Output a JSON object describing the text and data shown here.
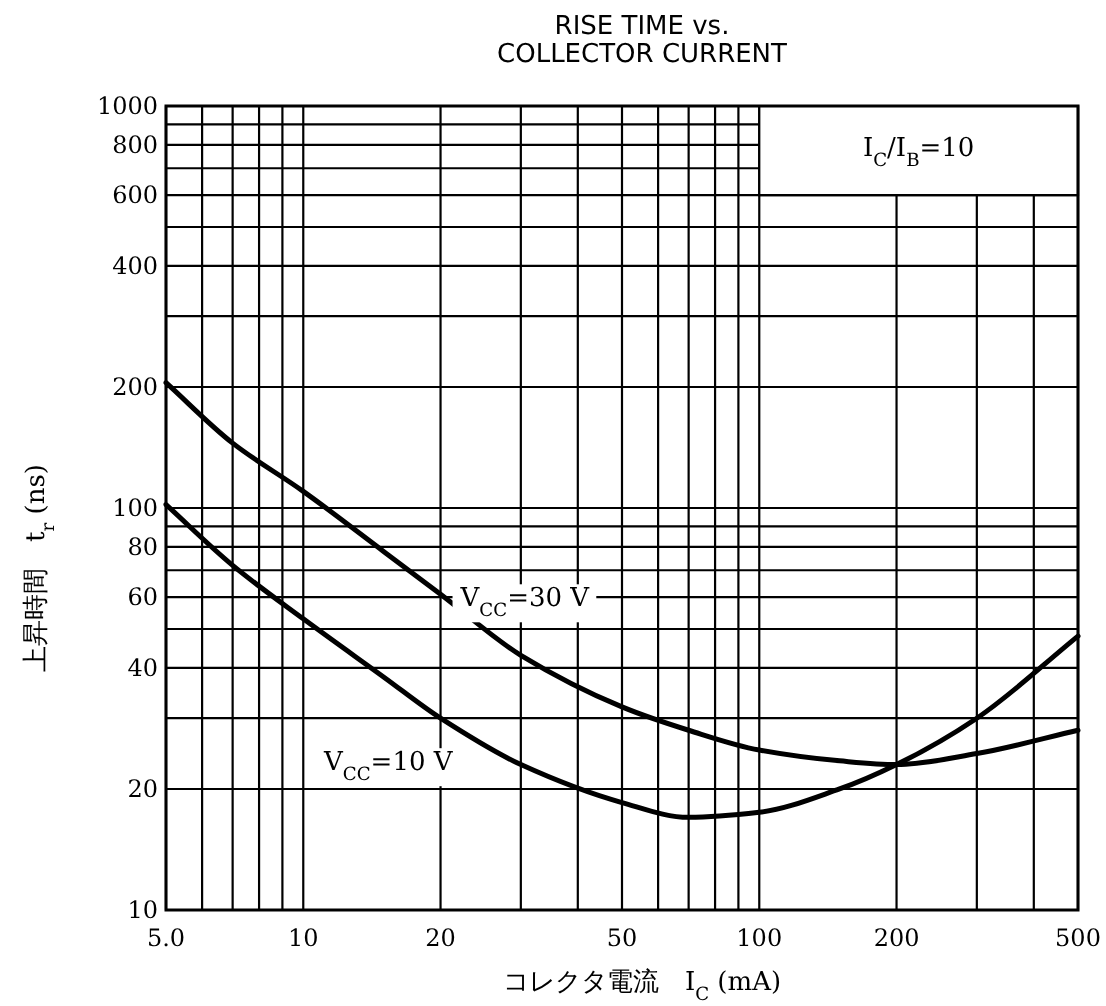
{
  "chart_data": {
    "type": "line",
    "title": "RISE TIME vs.\nCOLLECTOR CURRENT",
    "xlabel": "コレクタ電流　I$_{C}$ (mA)",
    "ylabel": "上昇時間　t$_{r}$ (ns)",
    "annotations": [
      "I$_{C}$/I$_{B}$=10"
    ],
    "log": "xy",
    "grid": true,
    "marker": "none",
    "line_style": "solid",
    "xlim": [
      5,
      500
    ],
    "ylim": [
      10,
      1000
    ],
    "xticks": [
      {
        "value": 5,
        "label": "5.0"
      },
      {
        "value": 6,
        "label": null
      },
      {
        "value": 7,
        "label": null
      },
      {
        "value": 8,
        "label": null
      },
      {
        "value": 9,
        "label": null
      },
      10,
      20,
      {
        "value": 30,
        "label": null
      },
      {
        "value": 40,
        "label": null
      },
      50,
      {
        "value": 60,
        "label": null
      },
      {
        "value": 70,
        "label": null
      },
      {
        "value": 80,
        "label": null
      },
      {
        "value": 90,
        "label": null
      },
      100,
      200,
      {
        "value": 300,
        "label": null
      },
      {
        "value": 400,
        "label": null
      },
      500
    ],
    "yticks": [
      10,
      20,
      {
        "value": 30,
        "label": null
      },
      40,
      {
        "value": 50,
        "label": null
      },
      60,
      {
        "value": 70,
        "label": null
      },
      80,
      {
        "value": 90,
        "label": null
      },
      100,
      200,
      {
        "value": 300,
        "label": null
      },
      400,
      {
        "value": 500,
        "label": null
      },
      600,
      {
        "value": 700,
        "label": null
      },
      800,
      {
        "value": 900,
        "label": null
      },
      1000
    ],
    "x": [
      5,
      7,
      10,
      15,
      20,
      30,
      50,
      70,
      100,
      150,
      200,
      300,
      500
    ],
    "series": [
      {
        "name": "V$_{CC}$=30 V",
        "color": "#000000",
        "values": [
          205,
          145,
          110,
          78,
          61,
          43,
          32,
          28,
          25,
          23.5,
          23,
          24.5,
          28
        ]
      },
      {
        "name": "V$_{CC}$=10 V",
        "color": "#000000",
        "values": [
          102,
          72,
          53,
          38,
          30,
          23,
          18.5,
          17,
          17.5,
          20,
          23,
          30,
          48
        ]
      }
    ]
  }
}
